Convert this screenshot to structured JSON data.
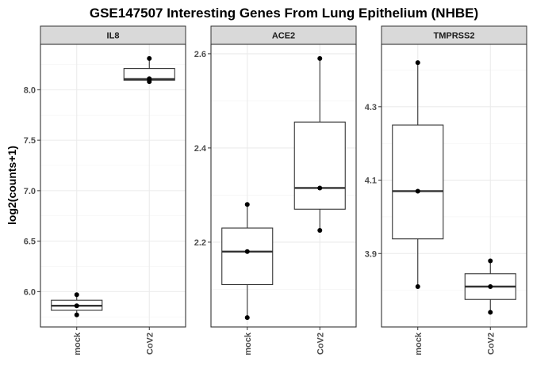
{
  "chart_data": {
    "type": "boxplot",
    "title": "GSE147507 Interesting Genes From Lung Epithelium (NHBE)",
    "ylabel": "log2(counts+1)",
    "xlabel": "",
    "categories": [
      "mock",
      "CoV2"
    ],
    "grid": true,
    "panels": [
      {
        "name": "IL8",
        "ylim": [
          5.65,
          8.45
        ],
        "yticks": [
          "6.0",
          "6.5",
          "7.0",
          "7.5",
          "8.0"
        ],
        "groups": [
          {
            "category": "mock",
            "points": [
              5.97,
              5.86,
              5.77
            ],
            "box": {
              "min": 5.77,
              "q1": 5.815,
              "median": 5.86,
              "q3": 5.915,
              "max": 5.97
            }
          },
          {
            "category": "CoV2",
            "points": [
              8.31,
              8.11,
              8.1,
              8.08
            ],
            "box": {
              "min": 8.08,
              "q1": 8.095,
              "median": 8.105,
              "q3": 8.21,
              "max": 8.31
            }
          }
        ]
      },
      {
        "name": "ACE2",
        "ylim": [
          2.02,
          2.62
        ],
        "yticks": [
          "2.2",
          "2.4",
          "2.6"
        ],
        "groups": [
          {
            "category": "mock",
            "points": [
              2.28,
              2.18,
              2.04
            ],
            "box": {
              "min": 2.04,
              "q1": 2.11,
              "median": 2.18,
              "q3": 2.23,
              "max": 2.28
            }
          },
          {
            "category": "CoV2",
            "points": [
              2.59,
              2.315,
              2.225
            ],
            "box": {
              "min": 2.225,
              "q1": 2.27,
              "median": 2.315,
              "q3": 2.455,
              "max": 2.59
            }
          }
        ]
      },
      {
        "name": "TMPRSS2",
        "ylim": [
          3.7,
          4.47
        ],
        "yticks": [
          "3.9",
          "4.1",
          "4.3"
        ],
        "groups": [
          {
            "category": "mock",
            "points": [
              4.42,
              4.07,
              3.81
            ],
            "box": {
              "min": 3.81,
              "q1": 3.94,
              "median": 4.07,
              "q3": 4.25,
              "max": 4.42
            }
          },
          {
            "category": "CoV2",
            "points": [
              3.88,
              3.81,
              3.74
            ],
            "box": {
              "min": 3.74,
              "q1": 3.775,
              "median": 3.81,
              "q3": 3.845,
              "max": 3.88
            }
          }
        ]
      }
    ]
  }
}
